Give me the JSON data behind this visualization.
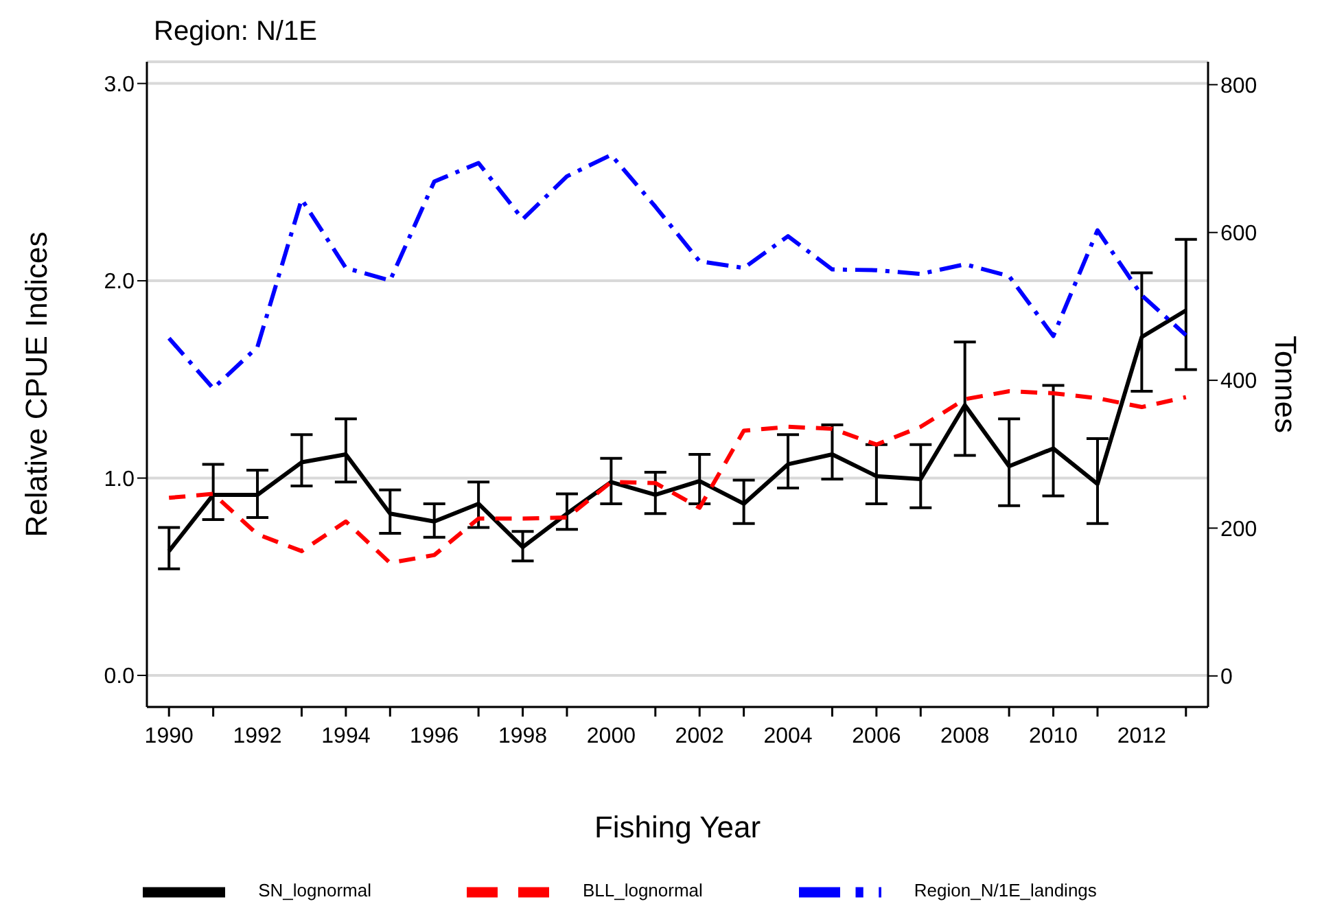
{
  "chart_data": {
    "type": "line",
    "title": "Region: N/1E",
    "xlabel": "Fishing Year",
    "ylabel": "Relative CPUE Indices",
    "y2label": "Tonnes",
    "x": [
      1990,
      1991,
      1992,
      1993,
      1994,
      1995,
      1996,
      1997,
      1998,
      1999,
      2000,
      2001,
      2002,
      2003,
      2004,
      2005,
      2006,
      2007,
      2008,
      2009,
      2010,
      2011,
      2012,
      2013
    ],
    "series": [
      {
        "name": "SN_lognormal",
        "color": "#000000",
        "line_style": "solid",
        "values": [
          0.63,
          0.915,
          0.915,
          1.08,
          1.12,
          0.82,
          0.78,
          0.87,
          0.65,
          0.82,
          0.98,
          0.915,
          0.985,
          0.87,
          1.07,
          1.12,
          1.01,
          0.995,
          1.37,
          1.06,
          1.15,
          0.97,
          1.715,
          1.85
        ],
        "errors": [
          [
            0.54,
            0.75
          ],
          [
            0.79,
            1.07
          ],
          [
            0.8,
            1.04
          ],
          [
            0.96,
            1.22
          ],
          [
            0.98,
            1.3
          ],
          [
            0.72,
            0.94
          ],
          [
            0.7,
            0.87
          ],
          [
            0.75,
            0.98
          ],
          [
            0.58,
            0.73
          ],
          [
            0.74,
            0.92
          ],
          [
            0.87,
            1.1
          ],
          [
            0.82,
            1.03
          ],
          [
            0.87,
            1.12
          ],
          [
            0.77,
            0.99
          ],
          [
            0.95,
            1.22
          ],
          [
            0.995,
            1.27
          ],
          [
            0.87,
            1.17
          ],
          [
            0.85,
            1.17
          ],
          [
            1.115,
            1.69
          ],
          [
            0.86,
            1.3
          ],
          [
            0.91,
            1.47
          ],
          [
            0.77,
            1.2
          ],
          [
            1.44,
            2.04
          ],
          [
            1.55,
            2.21
          ]
        ]
      },
      {
        "name": "BLL_lognormal",
        "color": "#ff0000",
        "line_style": "dashed",
        "values": [
          0.9,
          0.92,
          0.715,
          0.63,
          0.78,
          0.57,
          0.61,
          0.795,
          0.795,
          0.8,
          0.98,
          0.975,
          0.85,
          1.24,
          1.26,
          1.25,
          1.17,
          1.26,
          1.4,
          1.44,
          1.43,
          1.405,
          1.36,
          1.41
        ]
      },
      {
        "name": "Region_N/1E_landings",
        "color": "#0000ff",
        "line_style": "dashdot",
        "axis": "y2",
        "values": [
          457,
          389,
          445,
          645,
          552,
          535,
          669,
          694,
          618,
          676,
          705,
          635,
          561,
          552,
          595,
          550,
          549,
          544,
          557,
          541,
          460,
          603,
          515,
          461
        ]
      }
    ],
    "xlim": [
      1989.5,
      2013.5
    ],
    "xticks": [
      1990,
      {
        "value": 1991,
        "label": null
      },
      1992,
      {
        "value": 1993,
        "label": null
      },
      1994,
      {
        "value": 1995,
        "label": null
      },
      1996,
      {
        "value": 1997,
        "label": null
      },
      1998,
      {
        "value": 1999,
        "label": null
      },
      2000,
      {
        "value": 2001,
        "label": null
      },
      2002,
      {
        "value": 2003,
        "label": null
      },
      2004,
      {
        "value": 2005,
        "label": null
      },
      2006,
      {
        "value": 2007,
        "label": null
      },
      2008,
      {
        "value": 2009,
        "label": null
      },
      2010,
      {
        "value": 2011,
        "label": null
      },
      2012,
      {
        "value": 2013,
        "label": null
      }
    ],
    "ylim": [
      -0.16,
      3.11
    ],
    "yticks": [
      {
        "value": 0,
        "label": "0.0"
      },
      {
        "value": 1,
        "label": "1.0"
      },
      {
        "value": 2,
        "label": "2.0"
      },
      {
        "value": 3,
        "label": "3.0"
      }
    ],
    "y2lim": [
      -42,
      831
    ],
    "y2ticks": [
      0,
      200,
      400,
      600,
      800
    ],
    "grid": "y",
    "legend": "bottom"
  }
}
